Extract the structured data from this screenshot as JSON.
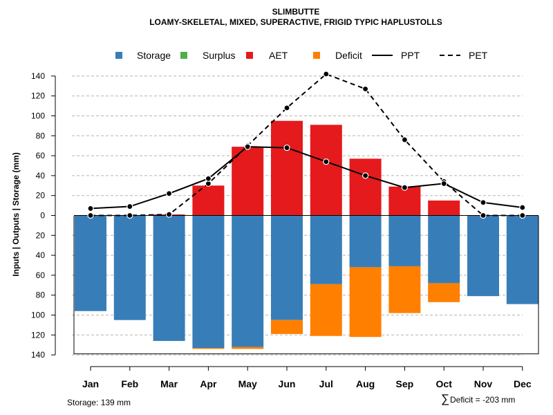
{
  "chart_data": {
    "type": "bar",
    "title": "SLIMBUTTE",
    "subtitle": "LOAMY-SKELETAL, MIXED, SUPERACTIVE, FRIGID TYPIC HAPLUSTOLLS",
    "ylabel": "Inputs | Outputs | Storage    (mm)",
    "ylim": [
      -140,
      140
    ],
    "yticks": [
      140,
      120,
      100,
      80,
      60,
      40,
      20,
      0,
      -20,
      -40,
      -60,
      -80,
      -100,
      -120,
      -140
    ],
    "ytick_labels": [
      "140",
      "120",
      "100",
      "80",
      "60",
      "40",
      "20",
      "0",
      "20",
      "40",
      "60",
      "80",
      "100",
      "120",
      "140"
    ],
    "categories": [
      "Jan",
      "Feb",
      "Mar",
      "Apr",
      "May",
      "Jun",
      "Jul",
      "Aug",
      "Sep",
      "Oct",
      "Nov",
      "Dec"
    ],
    "grid": true,
    "legend_position": "top",
    "legend": [
      {
        "name": "Storage",
        "kind": "swatch",
        "color": "#377EB8"
      },
      {
        "name": "Surplus",
        "kind": "swatch",
        "color": "#4DAF4A"
      },
      {
        "name": "AET",
        "kind": "swatch",
        "color": "#E41A1C"
      },
      {
        "name": "Deficit",
        "kind": "swatch",
        "color": "#FF7F00"
      },
      {
        "name": "PPT",
        "kind": "solid-line",
        "color": "#000000"
      },
      {
        "name": "PET",
        "kind": "dashed-line",
        "color": "#000000"
      }
    ],
    "series": [
      {
        "name": "AET",
        "type": "bar",
        "direction": "up",
        "color": "#E41A1C",
        "values": [
          0,
          0,
          1,
          30,
          69,
          95,
          91,
          57,
          29,
          15,
          0,
          0
        ]
      },
      {
        "name": "Storage",
        "type": "bar",
        "direction": "down",
        "color": "#377EB8",
        "values": [
          96,
          105,
          126,
          133,
          132,
          105,
          69,
          52,
          51,
          68,
          81,
          89
        ]
      },
      {
        "name": "Surplus",
        "type": "bar",
        "direction": "down",
        "color": "#4DAF4A",
        "values": [
          0,
          0,
          0,
          0,
          0,
          0,
          0,
          0,
          0,
          0,
          0,
          0
        ]
      },
      {
        "name": "Deficit",
        "type": "bar",
        "direction": "down",
        "color": "#FF7F00",
        "values": [
          0,
          0,
          0,
          1,
          2,
          14,
          52,
          70,
          47,
          19,
          0,
          0
        ]
      },
      {
        "name": "PPT",
        "type": "line",
        "style": "solid",
        "color": "#000000",
        "values": [
          7,
          9,
          22,
          37,
          69,
          68,
          54,
          40,
          28,
          32,
          13,
          8
        ]
      },
      {
        "name": "PET",
        "type": "line",
        "style": "dashed",
        "color": "#000000",
        "values": [
          0,
          0,
          1,
          32,
          70,
          108,
          142,
          127,
          76,
          34,
          0,
          0
        ]
      }
    ],
    "storage_capacity": 139,
    "notes": {
      "storage": "Storage: 139 mm",
      "deficit_symbol": "∑",
      "deficit": "Deficit = -203 mm"
    }
  }
}
